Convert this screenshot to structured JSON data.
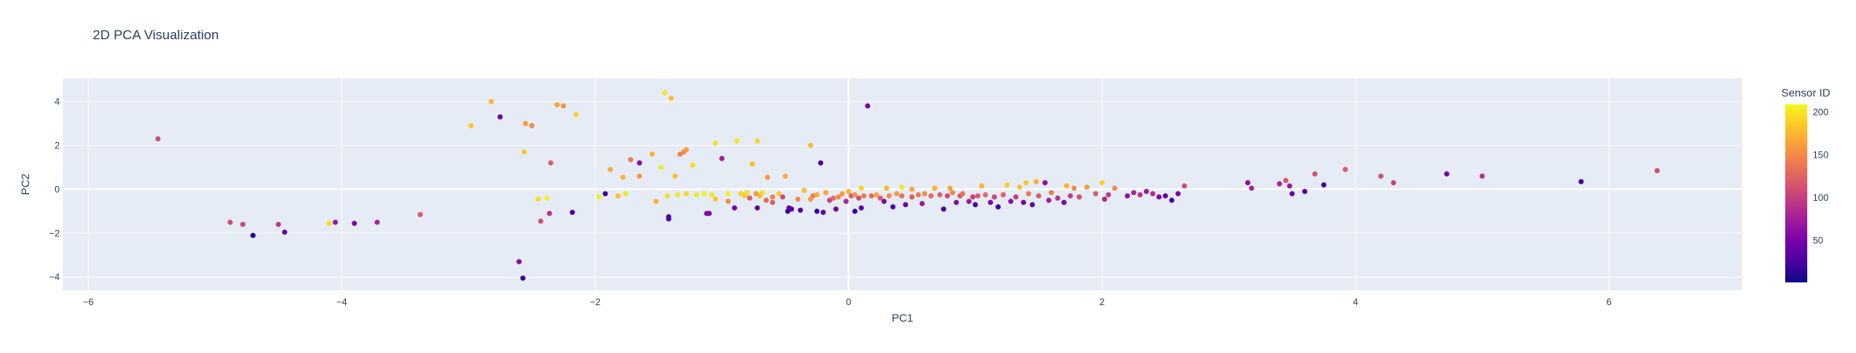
{
  "chart_data": {
    "type": "scatter",
    "title": "2D PCA Visualization",
    "xlabel": "PC1",
    "ylabel": "PC2",
    "xlim": [
      -6.2,
      7.05
    ],
    "ylim": [
      -4.6,
      5.05
    ],
    "xticks": [
      -6,
      -4,
      -2,
      0,
      2,
      4,
      6
    ],
    "yticks": [
      -4,
      -2,
      0,
      2,
      4
    ],
    "grid": true,
    "colorbar": {
      "title": "Sensor ID",
      "range": [
        1,
        209
      ],
      "ticks": [
        50,
        100,
        150,
        200
      ],
      "colorscale": "Plasma"
    },
    "points": [
      {
        "x": -5.45,
        "y": 2.3,
        "c": 110
      },
      {
        "x": -4.88,
        "y": -1.5,
        "c": 110
      },
      {
        "x": -4.78,
        "y": -1.6,
        "c": 105
      },
      {
        "x": -4.7,
        "y": -2.1,
        "c": 10
      },
      {
        "x": -4.5,
        "y": -1.6,
        "c": 95
      },
      {
        "x": -4.45,
        "y": -1.95,
        "c": 40
      },
      {
        "x": -4.1,
        "y": -1.55,
        "c": 195
      },
      {
        "x": -4.05,
        "y": -1.5,
        "c": 70
      },
      {
        "x": -3.9,
        "y": -1.55,
        "c": 55
      },
      {
        "x": -3.72,
        "y": -1.5,
        "c": 80
      },
      {
        "x": -3.38,
        "y": -1.15,
        "c": 120
      },
      {
        "x": -2.98,
        "y": 2.9,
        "c": 185
      },
      {
        "x": -2.82,
        "y": 4.0,
        "c": 175
      },
      {
        "x": -2.75,
        "y": 3.3,
        "c": 45
      },
      {
        "x": -2.6,
        "y": -3.3,
        "c": 60
      },
      {
        "x": -2.57,
        "y": -4.05,
        "c": 20
      },
      {
        "x": -2.56,
        "y": 1.7,
        "c": 185
      },
      {
        "x": -2.55,
        "y": 3.0,
        "c": 160
      },
      {
        "x": -2.5,
        "y": 2.9,
        "c": 150
      },
      {
        "x": -2.45,
        "y": -0.45,
        "c": 195
      },
      {
        "x": -2.43,
        "y": -1.45,
        "c": 110
      },
      {
        "x": -2.38,
        "y": -0.4,
        "c": 205
      },
      {
        "x": -2.36,
        "y": -1.1,
        "c": 90
      },
      {
        "x": -2.35,
        "y": 1.2,
        "c": 120
      },
      {
        "x": -2.3,
        "y": 3.85,
        "c": 165
      },
      {
        "x": -2.25,
        "y": 3.8,
        "c": 155
      },
      {
        "x": -2.18,
        "y": -1.05,
        "c": 30
      },
      {
        "x": -2.15,
        "y": 3.4,
        "c": 190
      },
      {
        "x": -1.97,
        "y": -0.35,
        "c": 205
      },
      {
        "x": -1.92,
        "y": -0.2,
        "c": 20
      },
      {
        "x": -1.88,
        "y": 0.9,
        "c": 170
      },
      {
        "x": -1.82,
        "y": -0.3,
        "c": 180
      },
      {
        "x": -1.78,
        "y": 0.55,
        "c": 175
      },
      {
        "x": -1.76,
        "y": -0.2,
        "c": 200
      },
      {
        "x": -1.72,
        "y": 1.35,
        "c": 140
      },
      {
        "x": -1.65,
        "y": 1.2,
        "c": 60
      },
      {
        "x": -1.65,
        "y": 0.6,
        "c": 160
      },
      {
        "x": -1.55,
        "y": 1.6,
        "c": 170
      },
      {
        "x": -1.52,
        "y": -0.55,
        "c": 170
      },
      {
        "x": -1.48,
        "y": 1.0,
        "c": 205
      },
      {
        "x": -1.45,
        "y": 4.4,
        "c": 200
      },
      {
        "x": -1.43,
        "y": -0.3,
        "c": 195
      },
      {
        "x": -1.42,
        "y": -1.25,
        "c": 25
      },
      {
        "x": -1.42,
        "y": -1.35,
        "c": 30
      },
      {
        "x": -1.4,
        "y": 4.15,
        "c": 180
      },
      {
        "x": -1.37,
        "y": 0.6,
        "c": 180
      },
      {
        "x": -1.35,
        "y": -0.25,
        "c": 200
      },
      {
        "x": -1.33,
        "y": 1.6,
        "c": 145
      },
      {
        "x": -1.3,
        "y": 1.7,
        "c": 150
      },
      {
        "x": -1.28,
        "y": 1.8,
        "c": 160
      },
      {
        "x": -1.28,
        "y": -0.2,
        "c": 190
      },
      {
        "x": -1.23,
        "y": 1.1,
        "c": 195
      },
      {
        "x": -1.2,
        "y": -0.25,
        "c": 200
      },
      {
        "x": -1.14,
        "y": -0.2,
        "c": 205
      },
      {
        "x": -1.12,
        "y": -1.1,
        "c": 60
      },
      {
        "x": -1.1,
        "y": -1.1,
        "c": 55
      },
      {
        "x": -1.08,
        "y": -0.25,
        "c": 200
      },
      {
        "x": -1.05,
        "y": -0.45,
        "c": 185
      },
      {
        "x": -1.05,
        "y": 2.1,
        "c": 195
      },
      {
        "x": -0.95,
        "y": -0.2,
        "c": 205
      },
      {
        "x": -0.95,
        "y": -0.55,
        "c": 150
      },
      {
        "x": -1.0,
        "y": 1.4,
        "c": 75
      },
      {
        "x": -0.88,
        "y": 2.2,
        "c": 200
      },
      {
        "x": -0.9,
        "y": -0.85,
        "c": 50
      },
      {
        "x": -0.85,
        "y": -0.2,
        "c": 190
      },
      {
        "x": -0.82,
        "y": -0.3,
        "c": 185
      },
      {
        "x": -0.8,
        "y": -0.15,
        "c": 195
      },
      {
        "x": -0.78,
        "y": -0.4,
        "c": 120
      },
      {
        "x": -0.76,
        "y": 1.15,
        "c": 180
      },
      {
        "x": -0.73,
        "y": -0.2,
        "c": 160
      },
      {
        "x": -0.72,
        "y": -0.85,
        "c": 40
      },
      {
        "x": -0.72,
        "y": 2.2,
        "c": 190
      },
      {
        "x": -0.7,
        "y": -0.3,
        "c": 175
      },
      {
        "x": -0.68,
        "y": -0.15,
        "c": 195
      },
      {
        "x": -0.65,
        "y": -0.5,
        "c": 130
      },
      {
        "x": -0.64,
        "y": 0.55,
        "c": 160
      },
      {
        "x": -0.6,
        "y": -0.35,
        "c": 145
      },
      {
        "x": -0.6,
        "y": -0.6,
        "c": 120
      },
      {
        "x": -0.55,
        "y": -0.2,
        "c": 185
      },
      {
        "x": -0.52,
        "y": -0.35,
        "c": 110
      },
      {
        "x": -0.5,
        "y": 0.6,
        "c": 170
      },
      {
        "x": -0.48,
        "y": -1.0,
        "c": 20
      },
      {
        "x": -0.47,
        "y": -0.85,
        "c": 40
      },
      {
        "x": -0.45,
        "y": -0.9,
        "c": 30
      },
      {
        "x": -0.4,
        "y": -0.45,
        "c": 150
      },
      {
        "x": -0.38,
        "y": -0.95,
        "c": 30
      },
      {
        "x": -0.35,
        "y": -0.05,
        "c": 180
      },
      {
        "x": -0.3,
        "y": -0.45,
        "c": 160
      },
      {
        "x": -0.3,
        "y": 2.0,
        "c": 175
      },
      {
        "x": -0.28,
        "y": -0.3,
        "c": 140
      },
      {
        "x": -0.25,
        "y": -0.25,
        "c": 170
      },
      {
        "x": -0.25,
        "y": -1.0,
        "c": 20
      },
      {
        "x": -0.22,
        "y": 1.2,
        "c": 25
      },
      {
        "x": -0.2,
        "y": -1.05,
        "c": 35
      },
      {
        "x": -0.18,
        "y": -0.15,
        "c": 165
      },
      {
        "x": -0.15,
        "y": -0.5,
        "c": 100
      },
      {
        "x": -0.12,
        "y": -0.4,
        "c": 130
      },
      {
        "x": -0.1,
        "y": -0.9,
        "c": 45
      },
      {
        "x": -0.08,
        "y": -0.35,
        "c": 150
      },
      {
        "x": -0.05,
        "y": -0.2,
        "c": 160
      },
      {
        "x": 0.0,
        "y": -0.1,
        "c": 175
      },
      {
        "x": -0.02,
        "y": -0.55,
        "c": 80
      },
      {
        "x": 0.02,
        "y": -0.3,
        "c": 120
      },
      {
        "x": 0.05,
        "y": -0.25,
        "c": 155
      },
      {
        "x": 0.08,
        "y": -0.4,
        "c": 110
      },
      {
        "x": 0.05,
        "y": -1.0,
        "c": 20
      },
      {
        "x": 0.1,
        "y": -0.85,
        "c": 40
      },
      {
        "x": 0.1,
        "y": 0.05,
        "c": 190
      },
      {
        "x": 0.12,
        "y": -0.3,
        "c": 140
      },
      {
        "x": 0.15,
        "y": 3.8,
        "c": 50
      },
      {
        "x": 0.18,
        "y": -0.3,
        "c": 130
      },
      {
        "x": 0.22,
        "y": -0.25,
        "c": 165
      },
      {
        "x": 0.25,
        "y": -0.4,
        "c": 120
      },
      {
        "x": 0.28,
        "y": -0.55,
        "c": 55
      },
      {
        "x": 0.3,
        "y": 0.05,
        "c": 175
      },
      {
        "x": 0.32,
        "y": -0.3,
        "c": 150
      },
      {
        "x": 0.35,
        "y": -0.8,
        "c": 30
      },
      {
        "x": 0.38,
        "y": -0.2,
        "c": 160
      },
      {
        "x": 0.42,
        "y": -0.3,
        "c": 135
      },
      {
        "x": 0.42,
        "y": 0.1,
        "c": 200
      },
      {
        "x": 0.45,
        "y": -0.7,
        "c": 45
      },
      {
        "x": 0.5,
        "y": -0.35,
        "c": 120
      },
      {
        "x": 0.5,
        "y": 0.0,
        "c": 165
      },
      {
        "x": 0.55,
        "y": -0.25,
        "c": 140
      },
      {
        "x": 0.58,
        "y": -0.65,
        "c": 70
      },
      {
        "x": 0.6,
        "y": -0.2,
        "c": 150
      },
      {
        "x": 0.65,
        "y": -0.3,
        "c": 130
      },
      {
        "x": 0.68,
        "y": 0.05,
        "c": 170
      },
      {
        "x": 0.72,
        "y": -0.25,
        "c": 125
      },
      {
        "x": 0.75,
        "y": -0.9,
        "c": 25
      },
      {
        "x": 0.78,
        "y": -0.3,
        "c": 110
      },
      {
        "x": 0.8,
        "y": 0.05,
        "c": 165
      },
      {
        "x": 0.82,
        "y": -0.15,
        "c": 145
      },
      {
        "x": 0.85,
        "y": -0.6,
        "c": 60
      },
      {
        "x": 0.88,
        "y": -0.3,
        "c": 115
      },
      {
        "x": 0.9,
        "y": -0.2,
        "c": 135
      },
      {
        "x": 0.95,
        "y": -0.55,
        "c": 70
      },
      {
        "x": 0.98,
        "y": -0.35,
        "c": 100
      },
      {
        "x": 1.0,
        "y": -0.7,
        "c": 30
      },
      {
        "x": 1.02,
        "y": -0.3,
        "c": 120
      },
      {
        "x": 1.05,
        "y": 0.15,
        "c": 175
      },
      {
        "x": 1.08,
        "y": -0.25,
        "c": 130
      },
      {
        "x": 1.12,
        "y": -0.6,
        "c": 55
      },
      {
        "x": 1.15,
        "y": -0.35,
        "c": 105
      },
      {
        "x": 1.18,
        "y": -0.8,
        "c": 20
      },
      {
        "x": 1.22,
        "y": -0.25,
        "c": 125
      },
      {
        "x": 1.25,
        "y": 0.2,
        "c": 190
      },
      {
        "x": 1.28,
        "y": -0.55,
        "c": 60
      },
      {
        "x": 1.32,
        "y": -0.35,
        "c": 100
      },
      {
        "x": 1.35,
        "y": 0.1,
        "c": 180
      },
      {
        "x": 1.38,
        "y": -0.6,
        "c": 50
      },
      {
        "x": 1.4,
        "y": 0.3,
        "c": 185
      },
      {
        "x": 1.42,
        "y": -0.2,
        "c": 140
      },
      {
        "x": 1.45,
        "y": -0.7,
        "c": 40
      },
      {
        "x": 1.48,
        "y": 0.35,
        "c": 170
      },
      {
        "x": 1.5,
        "y": -0.3,
        "c": 120
      },
      {
        "x": 1.55,
        "y": 0.3,
        "c": 60
      },
      {
        "x": 1.58,
        "y": -0.5,
        "c": 75
      },
      {
        "x": 1.6,
        "y": -0.15,
        "c": 140
      },
      {
        "x": 1.65,
        "y": -0.4,
        "c": 90
      },
      {
        "x": 1.7,
        "y": -0.6,
        "c": 50
      },
      {
        "x": 1.72,
        "y": 0.15,
        "c": 175
      },
      {
        "x": 1.75,
        "y": -0.3,
        "c": 100
      },
      {
        "x": 1.78,
        "y": 0.05,
        "c": 150
      },
      {
        "x": 1.82,
        "y": -0.35,
        "c": 110
      },
      {
        "x": 1.88,
        "y": 0.1,
        "c": 160
      },
      {
        "x": 1.95,
        "y": -0.2,
        "c": 120
      },
      {
        "x": 2.0,
        "y": 0.3,
        "c": 190
      },
      {
        "x": 2.02,
        "y": -0.45,
        "c": 80
      },
      {
        "x": 2.05,
        "y": -0.25,
        "c": 95
      },
      {
        "x": 2.1,
        "y": 0.05,
        "c": 150
      },
      {
        "x": 2.2,
        "y": -0.3,
        "c": 65
      },
      {
        "x": 2.25,
        "y": -0.15,
        "c": 80
      },
      {
        "x": 2.3,
        "y": -0.25,
        "c": 90
      },
      {
        "x": 2.35,
        "y": -0.1,
        "c": 70
      },
      {
        "x": 2.4,
        "y": -0.2,
        "c": 85
      },
      {
        "x": 2.45,
        "y": -0.35,
        "c": 55
      },
      {
        "x": 2.5,
        "y": -0.3,
        "c": 40
      },
      {
        "x": 2.55,
        "y": -0.5,
        "c": 25
      },
      {
        "x": 2.6,
        "y": -0.2,
        "c": 50
      },
      {
        "x": 2.65,
        "y": 0.15,
        "c": 110
      },
      {
        "x": 3.15,
        "y": 0.3,
        "c": 60
      },
      {
        "x": 3.18,
        "y": 0.05,
        "c": 80
      },
      {
        "x": 3.4,
        "y": 0.25,
        "c": 80
      },
      {
        "x": 3.45,
        "y": 0.4,
        "c": 115
      },
      {
        "x": 3.48,
        "y": 0.15,
        "c": 70
      },
      {
        "x": 3.5,
        "y": -0.2,
        "c": 40
      },
      {
        "x": 3.6,
        "y": -0.1,
        "c": 30
      },
      {
        "x": 3.68,
        "y": 0.7,
        "c": 110
      },
      {
        "x": 3.75,
        "y": 0.2,
        "c": 20
      },
      {
        "x": 3.92,
        "y": 0.9,
        "c": 120
      },
      {
        "x": 4.2,
        "y": 0.6,
        "c": 110
      },
      {
        "x": 4.3,
        "y": 0.3,
        "c": 100
      },
      {
        "x": 4.72,
        "y": 0.7,
        "c": 50
      },
      {
        "x": 5.0,
        "y": 0.6,
        "c": 90
      },
      {
        "x": 5.78,
        "y": 0.35,
        "c": 25
      },
      {
        "x": 6.38,
        "y": 0.85,
        "c": 110
      }
    ]
  }
}
